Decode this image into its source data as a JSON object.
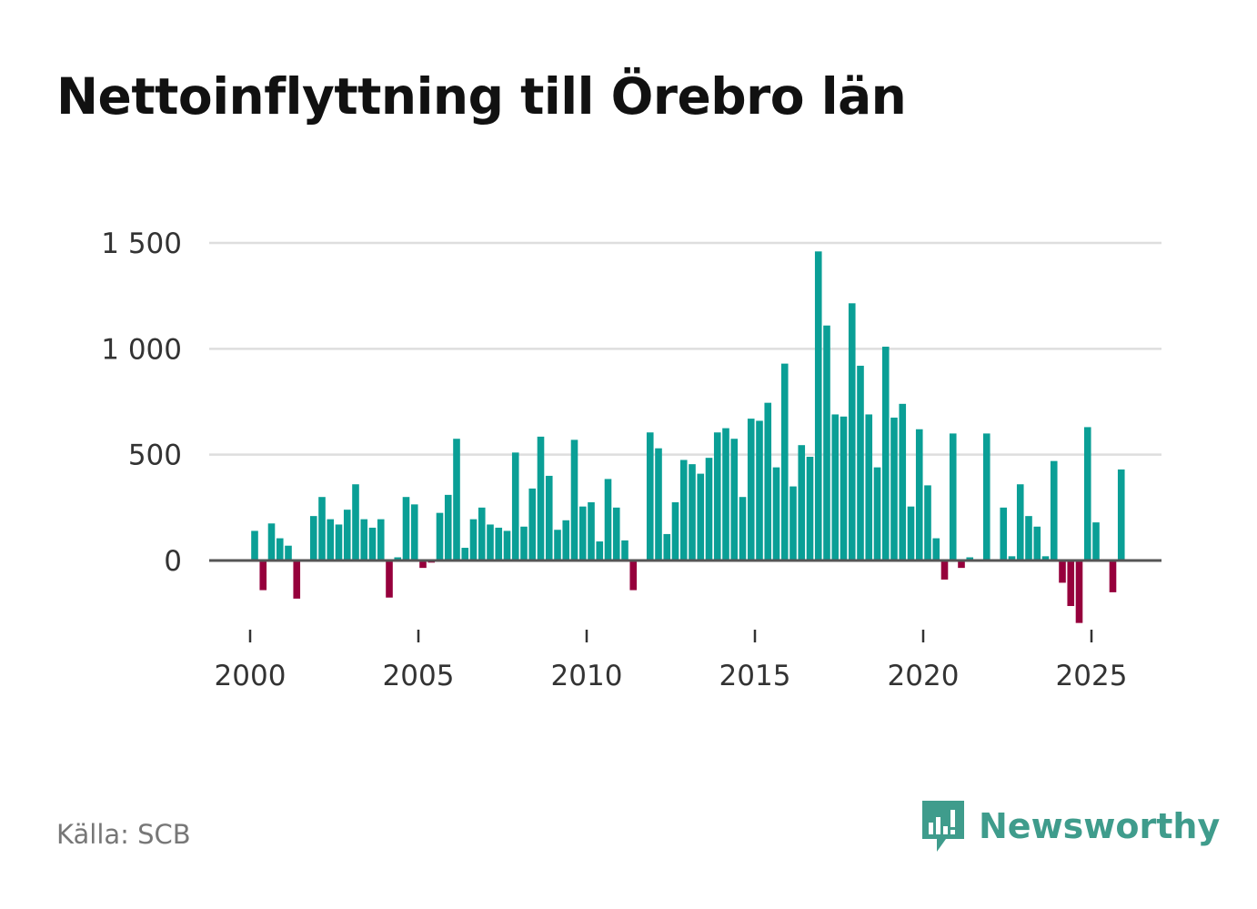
{
  "title": "Nettoinflyttning till Örebro län",
  "source": "Källa: SCB",
  "brand": {
    "name": "Newsworthy",
    "icon": "newsworthy-logo-icon",
    "color": "#3f9c8c"
  },
  "colors": {
    "positive": "#0a9f96",
    "negative": "#96003c",
    "grid": "#dedede",
    "axis": "#555555"
  },
  "chart_data": {
    "type": "bar",
    "title": "Nettoinflyttning till Örebro län",
    "xlabel": "",
    "ylabel": "",
    "frequency": "quarterly",
    "x_start": 2000.0,
    "x_step": 0.25,
    "xlim": [
      1999.25,
      2027.0
    ],
    "ylim": [
      -300,
      1500
    ],
    "y_ticks": [
      0,
      500,
      1000,
      1500
    ],
    "y_tick_labels": [
      "0",
      "500",
      "1 000",
      "1 500"
    ],
    "x_ticks": [
      2000,
      2005,
      2010,
      2015,
      2020,
      2025
    ],
    "x_tick_labels": [
      "2000",
      "2005",
      "2010",
      "2015",
      "2020",
      "2025"
    ],
    "grid": true,
    "values": [
      140,
      -140,
      175,
      105,
      70,
      -180,
      0,
      210,
      300,
      195,
      170,
      240,
      360,
      195,
      155,
      195,
      -175,
      15,
      300,
      265,
      -35,
      -10,
      225,
      310,
      575,
      60,
      195,
      250,
      170,
      155,
      140,
      510,
      160,
      340,
      585,
      400,
      145,
      190,
      570,
      255,
      275,
      90,
      385,
      250,
      95,
      -140,
      0,
      605,
      530,
      125,
      275,
      475,
      455,
      410,
      485,
      605,
      625,
      575,
      300,
      670,
      660,
      745,
      440,
      930,
      350,
      545,
      490,
      1460,
      1110,
      690,
      680,
      1215,
      920,
      690,
      440,
      1010,
      675,
      740,
      255,
      620,
      355,
      105,
      -90,
      600,
      -35,
      15,
      0,
      600,
      0,
      250,
      20,
      360,
      210,
      160,
      20,
      470,
      -105,
      -215,
      -295,
      630,
      180,
      0,
      -150,
      430
    ]
  }
}
